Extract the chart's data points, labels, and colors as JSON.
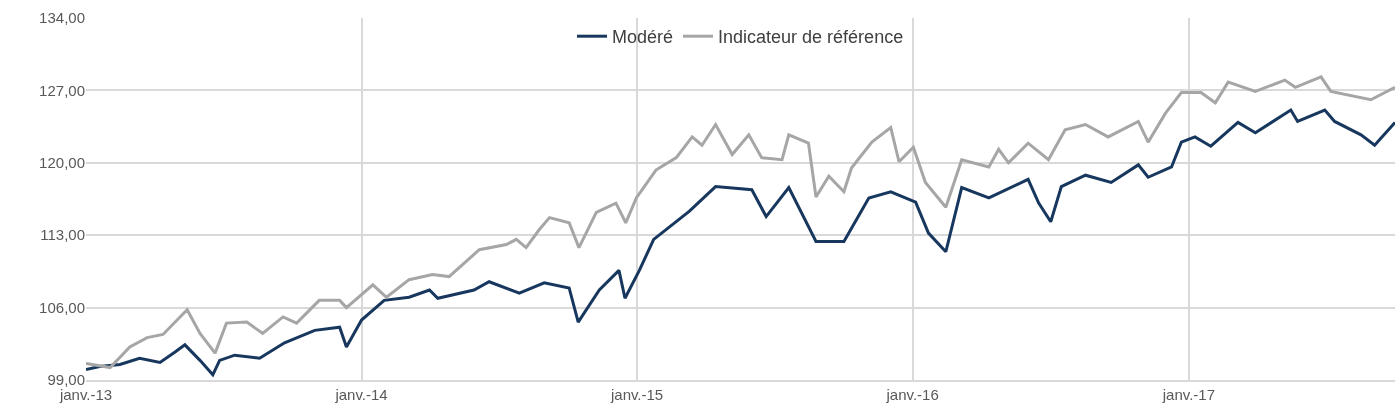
{
  "chart_data": {
    "type": "line",
    "xlim": [
      "2013-01-01",
      "2017-10-01"
    ],
    "xticks": [
      {
        "value": "2013-01-01",
        "label": "janv.-13"
      },
      {
        "value": "2014-01-01",
        "label": "janv.-14"
      },
      {
        "value": "2015-01-01",
        "label": "janv.-15"
      },
      {
        "value": "2016-01-01",
        "label": "janv.-16"
      },
      {
        "value": "2017-01-01",
        "label": "janv.-17"
      }
    ],
    "ylim": [
      99,
      134
    ],
    "yticks": [
      {
        "value": 99,
        "label": "99,00"
      },
      {
        "value": 106,
        "label": "106,00"
      },
      {
        "value": 113,
        "label": "113,00"
      },
      {
        "value": 120,
        "label": "120,00"
      },
      {
        "value": 127,
        "label": "127,00"
      },
      {
        "value": 134,
        "label": "134,00"
      }
    ],
    "grid": true,
    "legend": "top",
    "marker": "none",
    "line_style": "solid",
    "series": [
      {
        "name": "Modéré",
        "color": "#17375e",
        "x": [
          "2013-01-01",
          "2013-01-19",
          "2013-02-15",
          "2013-03-13",
          "2013-04-09",
          "2013-04-29",
          "2013-05-12",
          "2013-06-01",
          "2013-06-18",
          "2013-06-27",
          "2013-07-17",
          "2013-08-19",
          "2013-09-21",
          "2013-10-31",
          "2013-12-03",
          "2013-12-12",
          "2014-01-01",
          "2014-01-31",
          "2014-03-05",
          "2014-04-01",
          "2014-04-12",
          "2014-05-30",
          "2014-06-19",
          "2014-07-29",
          "2014-08-31",
          "2014-10-03",
          "2014-10-15",
          "2014-11-12",
          "2014-12-08",
          "2014-12-16",
          "2015-01-04",
          "2015-01-23",
          "2015-03-11",
          "2015-04-15",
          "2015-06-02",
          "2015-06-21",
          "2015-07-21",
          "2015-08-26",
          "2015-10-02",
          "2015-11-04",
          "2015-12-03",
          "2016-01-05",
          "2016-01-22",
          "2016-02-14",
          "2016-03-06",
          "2016-04-11",
          "2016-06-02",
          "2016-06-16",
          "2016-07-02",
          "2016-07-16",
          "2016-08-17",
          "2016-09-20",
          "2016-10-26",
          "2016-11-08",
          "2016-12-09",
          "2016-12-22",
          "2017-01-09",
          "2017-01-30",
          "2017-03-07",
          "2017-03-30",
          "2017-05-16",
          "2017-05-25",
          "2017-06-30",
          "2017-07-13",
          "2017-08-17",
          "2017-09-04",
          "2017-10-01"
        ],
        "values": [
          100.0,
          100.3,
          100.5,
          101.1,
          100.7,
          101.7,
          102.4,
          100.9,
          99.5,
          100.9,
          101.4,
          101.1,
          102.6,
          103.8,
          104.1,
          102.2,
          104.8,
          106.7,
          107.0,
          107.7,
          106.9,
          107.7,
          108.5,
          107.4,
          108.4,
          107.9,
          104.6,
          107.7,
          109.6,
          106.9,
          109.6,
          112.6,
          115.3,
          117.7,
          117.4,
          114.8,
          117.6,
          112.4,
          112.4,
          116.6,
          117.2,
          116.2,
          113.2,
          111.4,
          117.6,
          116.6,
          118.4,
          116.1,
          114.3,
          117.7,
          118.8,
          118.1,
          119.8,
          118.6,
          119.6,
          122.0,
          122.5,
          121.6,
          123.9,
          122.9,
          125.1,
          124.0,
          125.1,
          124.0,
          122.7,
          121.7,
          123.9
        ]
      },
      {
        "name": "Indicateur de référence",
        "color": "#a6a6a6",
        "x": [
          "2013-01-01",
          "2013-02-02",
          "2013-02-28",
          "2013-03-23",
          "2013-04-13",
          "2013-05-15",
          "2013-06-01",
          "2013-06-21",
          "2013-07-06",
          "2013-08-02",
          "2013-08-23",
          "2013-09-19",
          "2013-10-07",
          "2013-11-06",
          "2013-12-03",
          "2013-12-12",
          "2014-01-16",
          "2014-02-03",
          "2014-03-05",
          "2014-04-05",
          "2014-04-27",
          "2014-06-06",
          "2014-07-12",
          "2014-07-25",
          "2014-08-07",
          "2014-08-24",
          "2014-09-07",
          "2014-10-03",
          "2014-10-16",
          "2014-11-08",
          "2014-12-04",
          "2014-12-17",
          "2014-12-31",
          "2015-01-26",
          "2015-02-22",
          "2015-03-15",
          "2015-03-28",
          "2015-04-15",
          "2015-05-07",
          "2015-05-29",
          "2015-06-15",
          "2015-07-12",
          "2015-07-21",
          "2015-08-16",
          "2015-08-26",
          "2015-09-12",
          "2015-10-02",
          "2015-10-12",
          "2015-11-08",
          "2015-12-03",
          "2015-12-14",
          "2016-01-02",
          "2016-01-18",
          "2016-02-14",
          "2016-03-06",
          "2016-04-11",
          "2016-04-24",
          "2016-05-07",
          "2016-06-02",
          "2016-06-29",
          "2016-07-21",
          "2016-08-17",
          "2016-09-16",
          "2016-10-26",
          "2016-11-08",
          "2016-12-01",
          "2016-12-22",
          "2017-01-17",
          "2017-02-05",
          "2017-02-22",
          "2017-03-30",
          "2017-05-08",
          "2017-05-22",
          "2017-06-25",
          "2017-07-08",
          "2017-08-30",
          "2017-10-01"
        ],
        "values": [
          100.6,
          100.2,
          102.2,
          103.1,
          103.4,
          105.8,
          103.5,
          101.6,
          104.5,
          104.6,
          103.5,
          105.1,
          104.5,
          106.7,
          106.7,
          106.0,
          108.2,
          107.0,
          108.7,
          109.2,
          109.0,
          111.6,
          112.1,
          112.6,
          111.8,
          113.5,
          114.7,
          114.2,
          111.8,
          115.2,
          116.1,
          114.2,
          116.6,
          119.3,
          120.5,
          122.5,
          121.7,
          123.7,
          120.8,
          122.7,
          120.5,
          120.3,
          122.7,
          121.9,
          116.7,
          118.7,
          117.2,
          119.5,
          122.0,
          123.4,
          120.1,
          121.5,
          118.1,
          115.7,
          120.3,
          119.6,
          121.3,
          120.0,
          121.9,
          120.3,
          123.2,
          123.7,
          122.5,
          124.0,
          122.0,
          124.8,
          126.8,
          126.8,
          125.8,
          127.8,
          126.9,
          128.0,
          127.3,
          128.3,
          126.9,
          126.1,
          127.3
        ]
      }
    ]
  }
}
